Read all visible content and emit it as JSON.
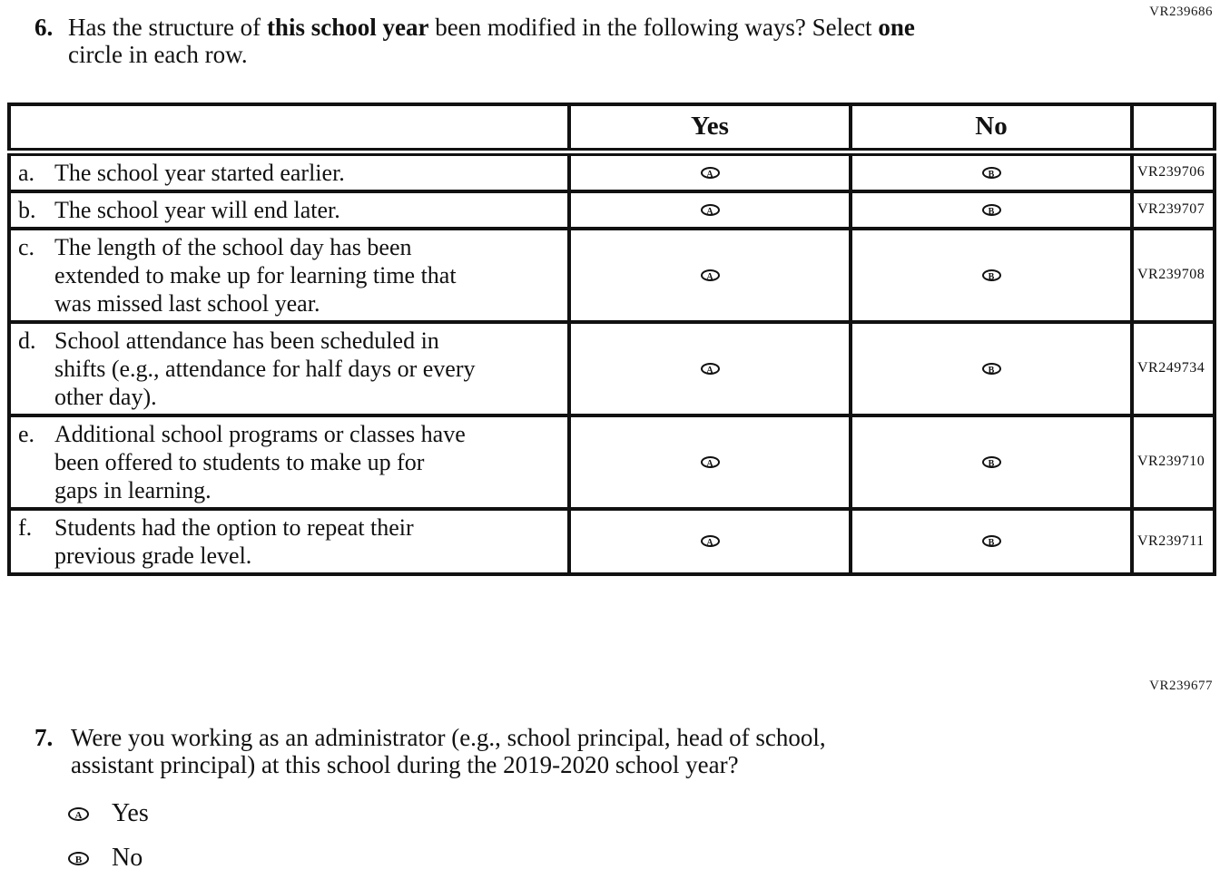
{
  "page": {
    "code_top": "VR239686",
    "code_mid": "VR239677"
  },
  "q6": {
    "number": "6.",
    "line1_segments": [
      {
        "text": "Has the structure of ",
        "bold": false
      },
      {
        "text": "this school year",
        "bold": true
      },
      {
        "text": " been modified in the following ways? Select ",
        "bold": false
      },
      {
        "text": "one",
        "bold": true
      }
    ],
    "line2": "circle in each row.",
    "table": {
      "headers": {
        "statement": "",
        "yes": "Yes",
        "no": "No",
        "code": ""
      },
      "bubble_yes": "A",
      "bubble_no": "B",
      "rows": [
        {
          "label": "a.",
          "lines": [
            "The school year started earlier."
          ],
          "code": "VR239706"
        },
        {
          "label": "b.",
          "lines": [
            "The school year will end later."
          ],
          "code": "VR239707"
        },
        {
          "label": "c.",
          "lines": [
            "The length of the school day has been",
            "extended to make up for learning time that",
            "was missed last school year."
          ],
          "code": "VR239708"
        },
        {
          "label": "d.",
          "lines": [
            "School attendance has been scheduled in",
            "shifts (e.g., attendance for half days or every",
            "other day)."
          ],
          "code": "VR249734"
        },
        {
          "label": "e.",
          "lines": [
            "Additional school programs or classes have",
            "been offered to students to make up for",
            "gaps in learning."
          ],
          "code": "VR239710"
        },
        {
          "label": "f.",
          "lines": [
            "Students had the option to repeat their",
            "previous grade level."
          ],
          "code": "VR239711"
        }
      ]
    }
  },
  "q7": {
    "number": "7.",
    "lines": [
      "Were you working as an administrator (e.g., school principal, head of school,",
      "assistant principal) at this school during the 2019-2020 school year?"
    ],
    "options": [
      {
        "bubble": "A",
        "label": "Yes"
      },
      {
        "bubble": "B",
        "label": "No"
      }
    ]
  }
}
